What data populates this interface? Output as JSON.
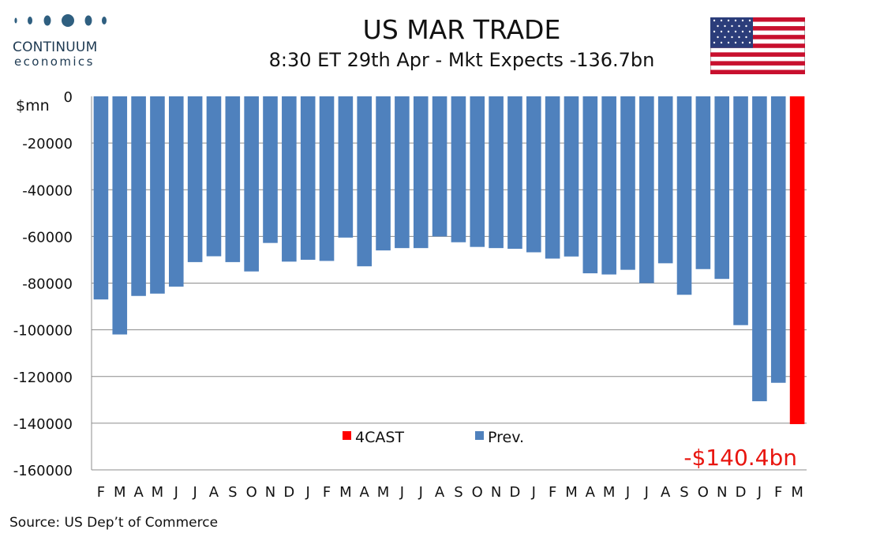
{
  "header": {
    "logo_line1": "CONTINUUM",
    "logo_line2": "economics",
    "title": "US MAR TRADE",
    "subtitle": "8:30 ET 29th Apr - Mkt Expects -136.7bn"
  },
  "footer": {
    "source": "Source: US Dep’t of Commerce"
  },
  "colors": {
    "prev": "#4f81bd",
    "forecast": "#ff0000",
    "callout": "#e8150f",
    "grid": "#8c8c8c"
  },
  "chart_data": {
    "type": "bar",
    "title": "US MAR TRADE",
    "subtitle": "8:30 ET 29th Apr - Mkt Expects -136.7bn",
    "ylabel": "$mn",
    "xlabel": "",
    "ylim": [
      -160000,
      0
    ],
    "yticks": [
      0,
      -20000,
      -40000,
      -60000,
      -80000,
      -100000,
      -120000,
      -140000,
      -160000
    ],
    "grid": true,
    "legend_position": "bottom-center",
    "categories": [
      "F",
      "M",
      "A",
      "M",
      "J",
      "J",
      "A",
      "S",
      "O",
      "N",
      "D",
      "J",
      "F",
      "M",
      "A",
      "M",
      "J",
      "J",
      "A",
      "S",
      "O",
      "N",
      "D",
      "J",
      "F",
      "M",
      "A",
      "M",
      "J",
      "J",
      "A",
      "S",
      "O",
      "N",
      "D",
      "J",
      "F",
      "M"
    ],
    "series": [
      {
        "name": "Prev.",
        "color": "#4f81bd",
        "values": [
          -87000,
          -102000,
          -85500,
          -84500,
          -81500,
          -71000,
          -68500,
          -71000,
          -75000,
          -62800,
          -70800,
          -70000,
          -70500,
          -60500,
          -72800,
          -66000,
          -65000,
          -65000,
          -60000,
          -62500,
          -64500,
          -65000,
          -65300,
          -66800,
          -69500,
          -68600,
          -75800,
          -76300,
          -74300,
          -80000,
          -71500,
          -85000,
          -74000,
          -78200,
          -98000,
          -130600,
          -122700,
          null
        ]
      },
      {
        "name": "4CAST",
        "color": "#ff0000",
        "values": [
          null,
          null,
          null,
          null,
          null,
          null,
          null,
          null,
          null,
          null,
          null,
          null,
          null,
          null,
          null,
          null,
          null,
          null,
          null,
          null,
          null,
          null,
          null,
          null,
          null,
          null,
          null,
          null,
          null,
          null,
          null,
          null,
          null,
          null,
          null,
          null,
          null,
          -140400
        ]
      }
    ],
    "annotations": [
      {
        "text": "-$140.4bn"
      }
    ]
  }
}
